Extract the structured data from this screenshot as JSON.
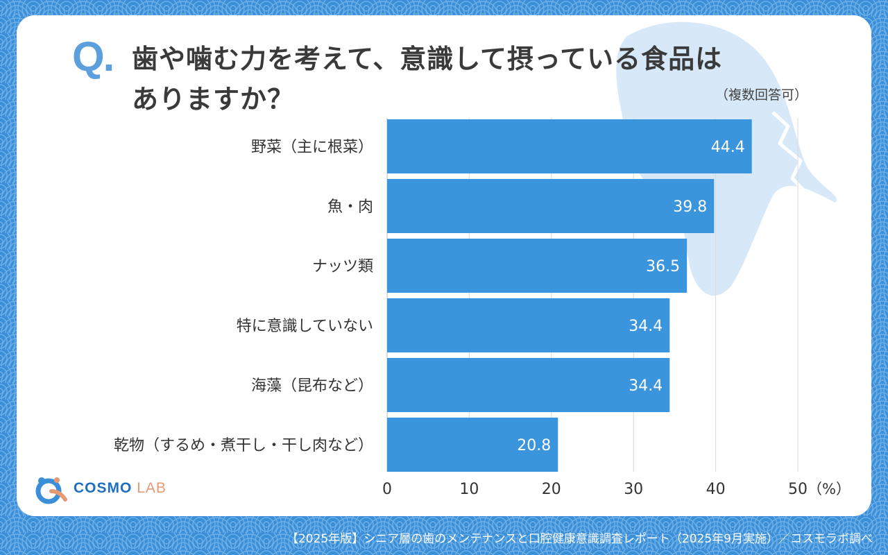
{
  "question": {
    "mark": "Q.",
    "line1": "歯や噛む力を考えて、意識して摂っている食品は",
    "line2": "ありますか？",
    "note": "（複数回答可）"
  },
  "chart_data": {
    "type": "bar",
    "orientation": "horizontal",
    "categories": [
      "野菜（主に根菜）",
      "魚・肉",
      "ナッツ類",
      "特に意識していない",
      "海藻（昆布など）",
      "乾物（するめ・煮干し・干し肉など）"
    ],
    "values": [
      44.4,
      39.8,
      36.5,
      34.4,
      34.4,
      20.8
    ],
    "value_labels": [
      "44.4",
      "39.8",
      "36.5",
      "34.4",
      "34.4",
      "20.8"
    ],
    "xlim": [
      0,
      50
    ],
    "ticks": [
      "0",
      "10",
      "20",
      "30",
      "40",
      "50"
    ],
    "unit": "（%）",
    "bar_color": "#3a95dd",
    "gridlines": true
  },
  "logo": {
    "main": "COSMO",
    "sub": "LAB"
  },
  "footer": "【2025年版】シニア層の歯のメンテナンスと口腔健康意識調査レポート（2025年9月実施）／コスモラボ調べ",
  "colors": {
    "background": "#3a8fd8",
    "card": "#ffffff",
    "accent": "#5ba0dd",
    "bar": "#3a95dd",
    "logo_orange": "#e49a72"
  }
}
